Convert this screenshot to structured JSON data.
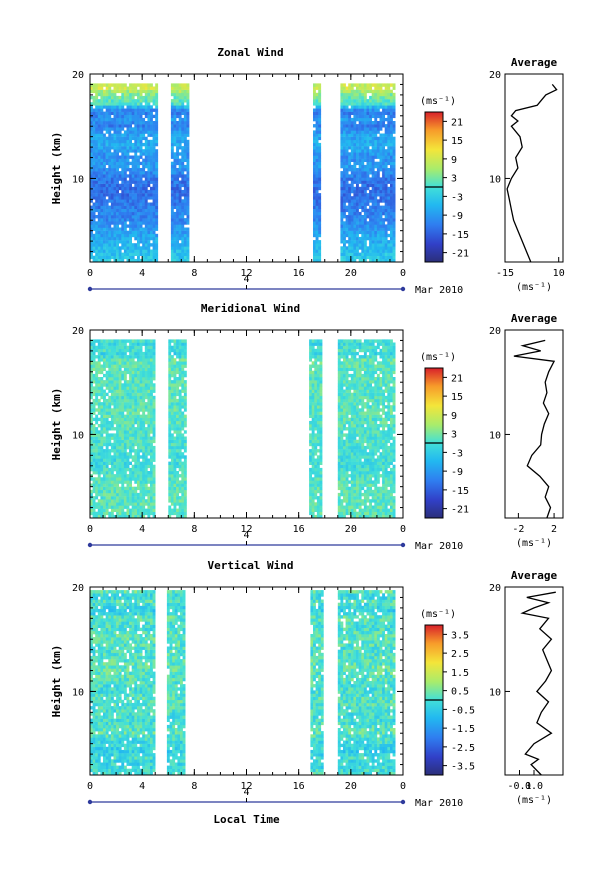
{
  "figure": {
    "date_label": "Mar 2010",
    "day_label": "4",
    "x_axis_label": "Local Time",
    "y_axis_label": "Height (km)",
    "unit_label": "(ms⁻¹)"
  },
  "chart_data": [
    {
      "type": "heatmap",
      "title": "Zonal Wind",
      "xlabel": "",
      "ylabel": "Height (km)",
      "xlim": [
        0,
        24
      ],
      "ylim": [
        2,
        20
      ],
      "x_ticks": [
        "0",
        "4",
        "8",
        "12",
        "16",
        "20",
        "0"
      ],
      "y_ticks": [
        "10",
        "20"
      ],
      "colorbar_ticks": [
        "21",
        "15",
        "9",
        "3",
        "-3",
        "-9",
        "-15",
        "-21"
      ],
      "colorbar_range": [
        -24,
        24
      ],
      "data_time_ranges": [
        [
          0,
          5.2
        ],
        [
          6.2,
          7.5
        ],
        [
          17.1,
          17.7
        ],
        [
          19.2,
          23.2
        ]
      ],
      "height_range": [
        2,
        19
      ],
      "profile": {
        "title": "Average",
        "xlabel": "(ms⁻¹)",
        "xlim": [
          -15,
          12
        ],
        "x_ticks": [
          "-15",
          "10"
        ],
        "y_ticks": [
          "10",
          "20"
        ],
        "heights": [
          2,
          3,
          4,
          5,
          6,
          7,
          8,
          9,
          10,
          11,
          12,
          13,
          14,
          15,
          15.5,
          16,
          16.5,
          17,
          17.5,
          18,
          18.5,
          19
        ],
        "values": [
          -3,
          -5,
          -7,
          -9,
          -11,
          -12,
          -13,
          -14,
          -12,
          -9,
          -10,
          -7,
          -8,
          -12,
          -9,
          -12,
          -10,
          0,
          2,
          4,
          9,
          7
        ]
      }
    },
    {
      "type": "heatmap",
      "title": "Meridional Wind",
      "xlabel": "",
      "ylabel": "Height (km)",
      "xlim": [
        0,
        24
      ],
      "ylim": [
        2,
        20
      ],
      "x_ticks": [
        "0",
        "4",
        "8",
        "12",
        "16",
        "20",
        "0"
      ],
      "y_ticks": [
        "10",
        "20"
      ],
      "colorbar_ticks": [
        "21",
        "15",
        "9",
        "3",
        "-3",
        "-9",
        "-15",
        "-21"
      ],
      "colorbar_range": [
        -24,
        24
      ],
      "data_time_ranges": [
        [
          0,
          5.0
        ],
        [
          6.0,
          7.4
        ],
        [
          16.8,
          17.7
        ],
        [
          19.0,
          23.2
        ]
      ],
      "height_range": [
        2,
        19
      ],
      "profile": {
        "title": "Average",
        "xlabel": "(ms⁻¹)",
        "xlim": [
          -3.5,
          3
        ],
        "x_ticks": [
          "-2",
          "2"
        ],
        "y_ticks": [
          "10",
          "20"
        ],
        "heights": [
          2,
          3,
          4,
          5,
          6,
          7,
          8,
          9,
          10,
          11,
          12,
          13,
          14,
          15,
          16,
          17,
          17.5,
          18,
          18.5,
          19
        ],
        "values": [
          1.2,
          1.6,
          1.0,
          1.4,
          0.4,
          -1.0,
          -0.5,
          0.5,
          0.6,
          0.9,
          1.4,
          0.8,
          1.2,
          1.0,
          1.4,
          2.0,
          -2.5,
          0.5,
          -1.5,
          1.0
        ]
      }
    },
    {
      "type": "heatmap",
      "title": "Vertical Wind",
      "xlabel": "Local Time",
      "ylabel": "Height (km)",
      "xlim": [
        0,
        24
      ],
      "ylim": [
        2,
        20
      ],
      "x_ticks": [
        "0",
        "4",
        "8",
        "12",
        "16",
        "20",
        "0"
      ],
      "y_ticks": [
        "10",
        "20"
      ],
      "colorbar_ticks": [
        "3.5",
        "2.5",
        "1.5",
        "0.5",
        "-0.5",
        "-1.5",
        "-2.5",
        "-3.5"
      ],
      "colorbar_range": [
        -4,
        4
      ],
      "data_time_ranges": [
        [
          0,
          5.0
        ],
        [
          5.9,
          7.3
        ],
        [
          16.9,
          17.8
        ],
        [
          19.0,
          23.2
        ]
      ],
      "height_range": [
        2,
        19.5
      ],
      "profile": {
        "title": "Average",
        "xlabel": "(ms⁻¹)",
        "xlim": [
          -0.2,
          0.2
        ],
        "x_ticks": [
          "-0.1",
          "0.0"
        ],
        "y_ticks": [
          "10",
          "20"
        ],
        "heights": [
          2,
          3,
          3.5,
          4,
          5,
          6,
          7,
          8,
          9,
          10,
          11,
          12,
          13,
          14,
          15,
          16,
          17,
          17.5,
          18,
          18.5,
          19,
          19.5
        ],
        "values": [
          0.05,
          -0.02,
          0.03,
          -0.06,
          0.0,
          0.12,
          0.02,
          0.05,
          0.1,
          0.02,
          0.08,
          0.12,
          0.09,
          0.06,
          0.12,
          0.04,
          0.1,
          -0.08,
          0.0,
          0.1,
          -0.05,
          0.15
        ]
      }
    }
  ]
}
